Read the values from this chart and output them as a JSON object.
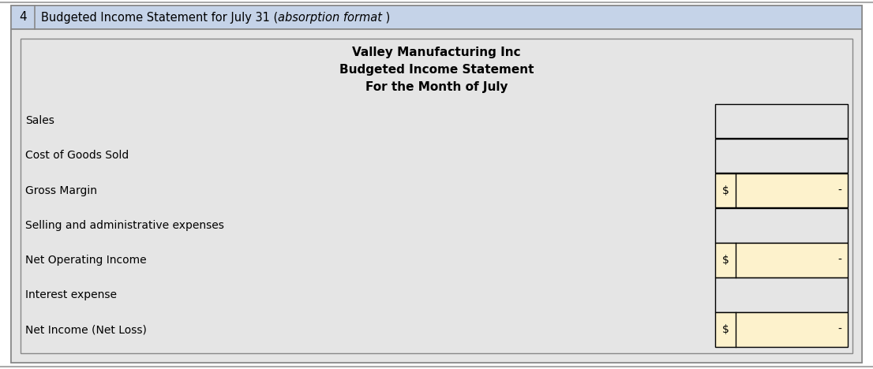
{
  "number": "4",
  "header_text_plain": "Budgeted Income Statement for July 31 (",
  "header_text_italic": "absorption format",
  "header_text_end": " )",
  "company_name": "Valley Manufacturing Inc",
  "statement_title": "Budgeted Income Statement",
  "period": "For the Month of July",
  "line_items": [
    "Sales",
    "Cost of Goods Sold",
    "Gross Margin",
    "Selling and administrative expenses",
    "Net Operating Income",
    "Interest expense",
    "Net Income (Net Loss)"
  ],
  "highlighted_rows": [
    2,
    4,
    6
  ],
  "dash_value": "-",
  "header_bg_color": "#c5d3e8",
  "body_bg_color": "#e5e5e5",
  "cell_bg_normal": "#e5e5e5",
  "cell_bg_highlight": "#fdf2cc",
  "cell_border_color": "#000000",
  "fig_bg": "#ffffff",
  "outer_border_color": "#888888",
  "fontsize_header": 10.5,
  "fontsize_body": 10,
  "fontsize_title": 11
}
